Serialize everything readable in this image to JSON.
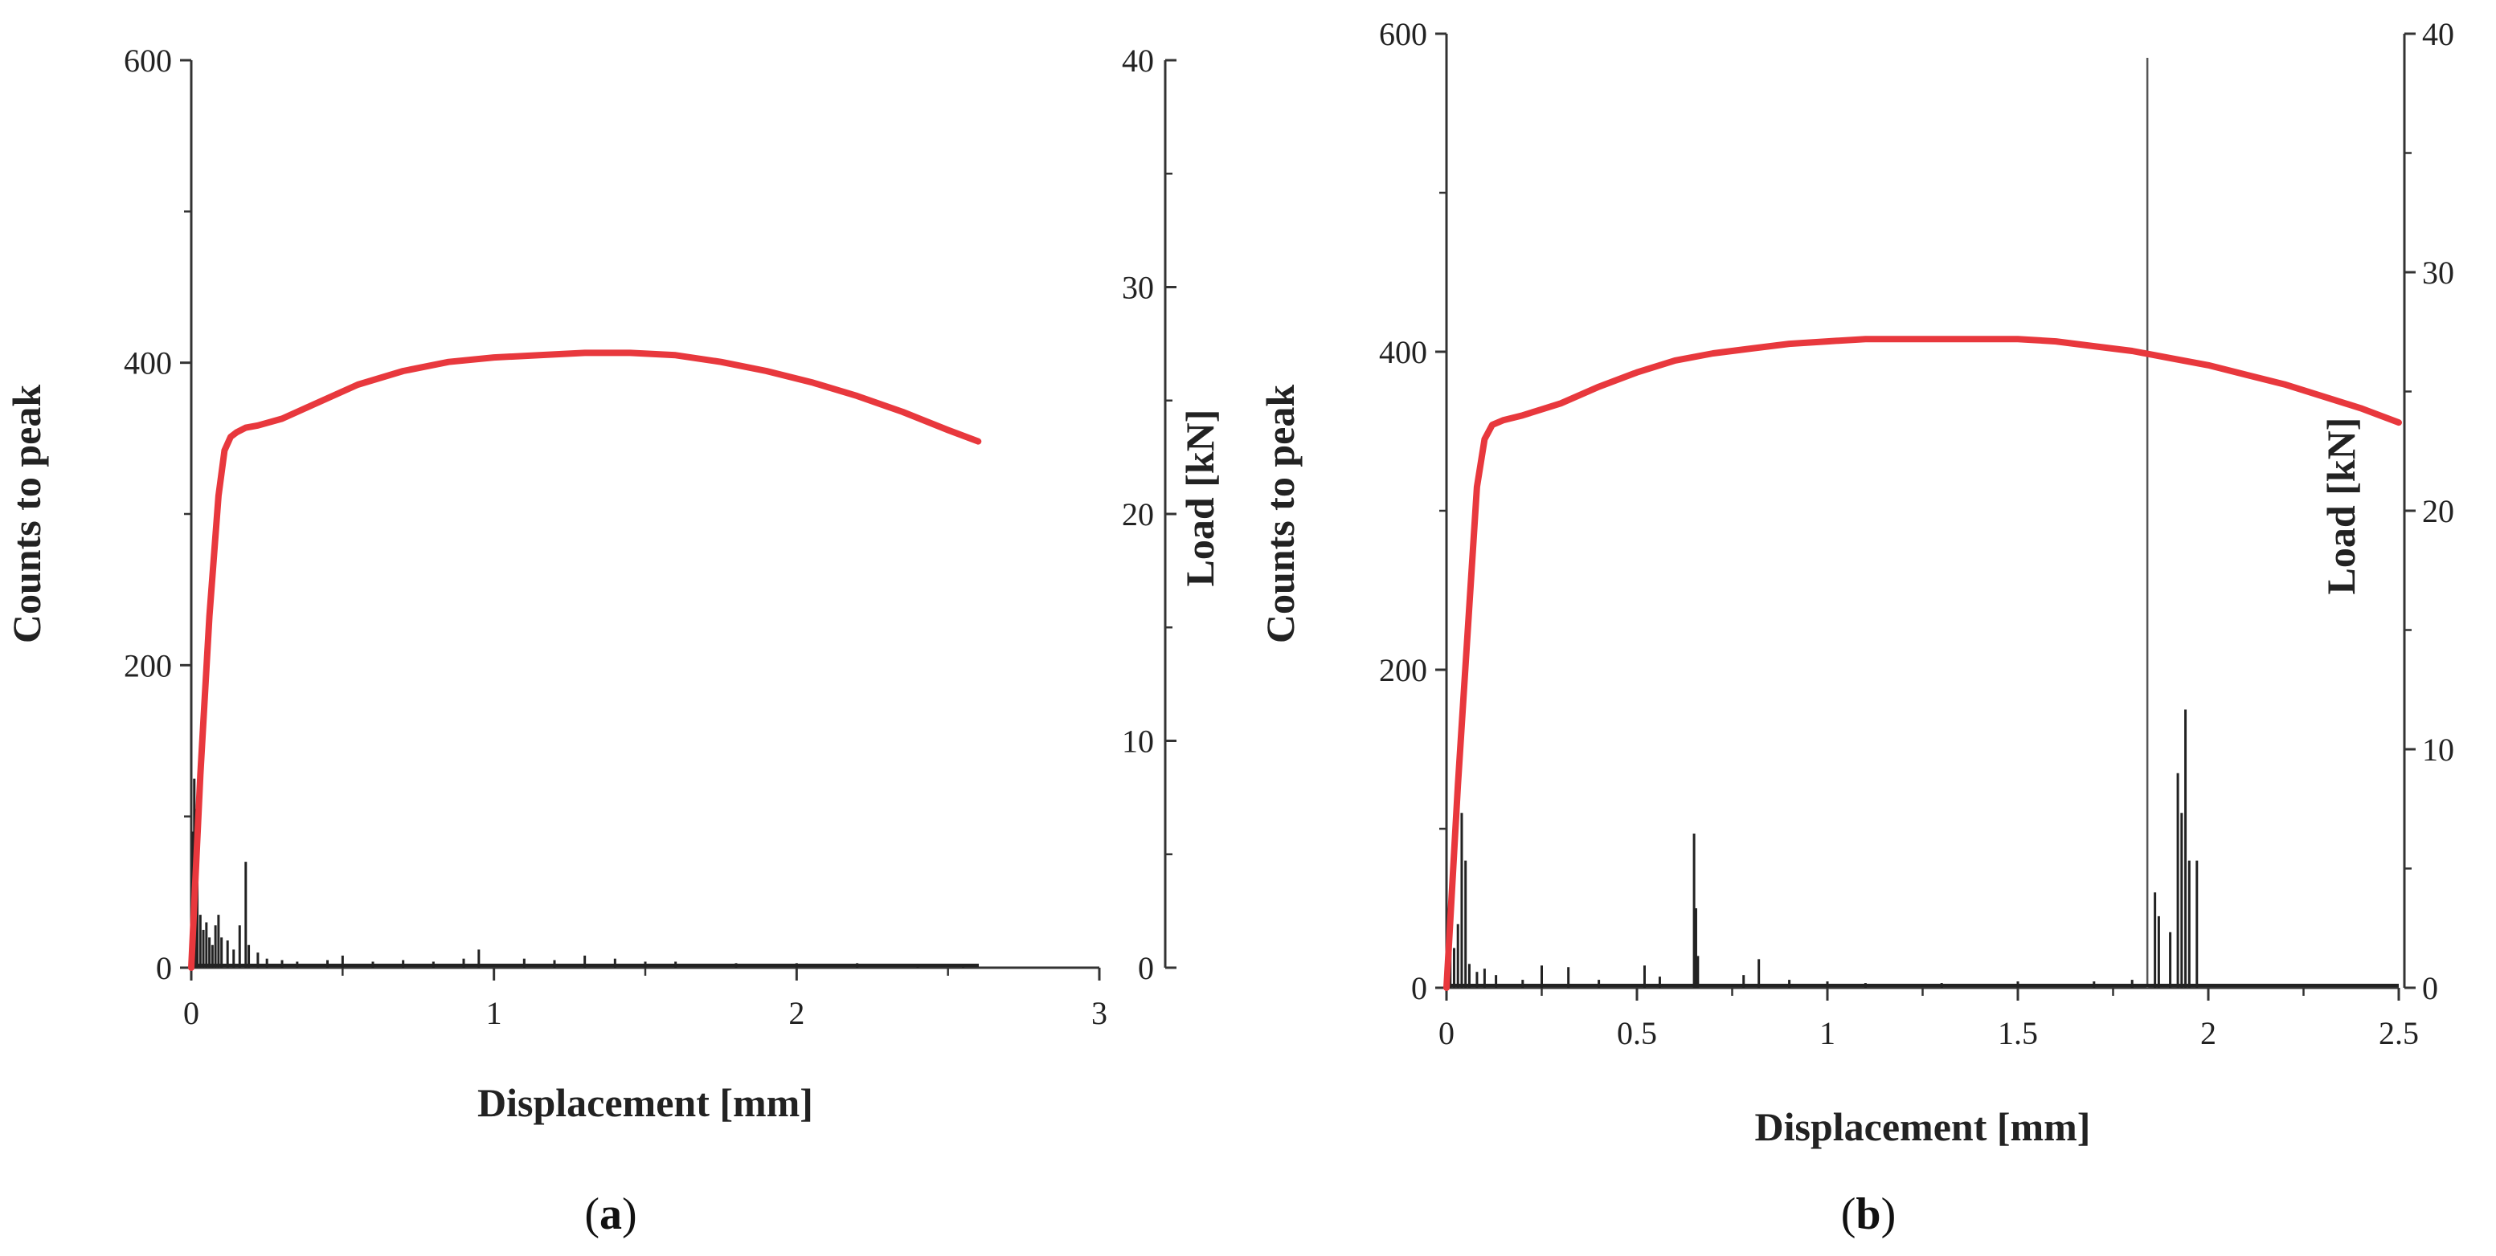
{
  "colors": {
    "load": "#e8383d",
    "counts": "#222222",
    "axis": "#333333"
  },
  "chart_data": [
    {
      "type": "line",
      "panel": "a",
      "caption": {
        "open": "(",
        "letter": "a",
        "close": ")"
      },
      "xlabel": "Displacement [mm]",
      "ylabel": "Counts to peak",
      "y2label": "Load [kN]",
      "xlim": [
        0,
        3
      ],
      "ylim": [
        0,
        600
      ],
      "y2lim": [
        0,
        40
      ],
      "xticks": [
        "0",
        "1",
        "2",
        "3"
      ],
      "yticks": [
        "0",
        "200",
        "400",
        "600"
      ],
      "y2ticks": [
        "0",
        "10",
        "20",
        "30",
        "40"
      ],
      "series": [
        {
          "name": "Load [kN]",
          "axis": "y2",
          "x": [
            0,
            0.03,
            0.06,
            0.09,
            0.11,
            0.13,
            0.15,
            0.18,
            0.22,
            0.3,
            0.4,
            0.55,
            0.7,
            0.85,
            1.0,
            1.15,
            1.3,
            1.45,
            1.6,
            1.75,
            1.9,
            2.05,
            2.2,
            2.35,
            2.5,
            2.6
          ],
          "y": [
            0,
            8.5,
            15.5,
            20.8,
            22.8,
            23.4,
            23.6,
            23.8,
            23.9,
            24.2,
            24.8,
            25.7,
            26.3,
            26.7,
            26.9,
            27.0,
            27.1,
            27.1,
            27.0,
            26.7,
            26.3,
            25.8,
            25.2,
            24.5,
            23.7,
            23.2
          ]
        },
        {
          "name": "Counts to peak",
          "axis": "y",
          "type": "spikes",
          "x": [
            0.005,
            0.01,
            0.015,
            0.02,
            0.03,
            0.04,
            0.05,
            0.06,
            0.07,
            0.08,
            0.09,
            0.1,
            0.12,
            0.14,
            0.16,
            0.18,
            0.19,
            0.22,
            0.25,
            0.3,
            0.35,
            0.45,
            0.5,
            0.6,
            0.7,
            0.8,
            0.9,
            0.95,
            1.1,
            1.2,
            1.3,
            1.4,
            1.5,
            1.6,
            1.8,
            2.0,
            2.2,
            2.4,
            2.55
          ],
          "y": [
            90,
            125,
            105,
            60,
            35,
            25,
            30,
            20,
            15,
            28,
            35,
            20,
            18,
            12,
            28,
            70,
            15,
            10,
            6,
            5,
            4,
            5,
            8,
            4,
            5,
            4,
            6,
            12,
            6,
            5,
            8,
            6,
            4,
            4,
            3,
            3,
            3,
            2,
            2
          ]
        }
      ]
    },
    {
      "type": "line",
      "panel": "b",
      "caption": {
        "open": "(",
        "letter": "b",
        "close": ")"
      },
      "xlabel": "Displacement [mm]",
      "ylabel": "Counts to peak",
      "y2label": "Load [kN]",
      "xlim": [
        0,
        2.5
      ],
      "ylim": [
        0,
        600
      ],
      "y2lim": [
        0,
        40
      ],
      "xticks": [
        "0",
        "0.5",
        "1",
        "1.5",
        "2",
        "2.5"
      ],
      "yticks": [
        "0",
        "200",
        "400",
        "600"
      ],
      "y2ticks": [
        "0",
        "10",
        "20",
        "30",
        "40"
      ],
      "vline_x": 1.84,
      "series": [
        {
          "name": "Load [kN]",
          "axis": "y2",
          "x": [
            0,
            0.03,
            0.06,
            0.08,
            0.1,
            0.12,
            0.15,
            0.2,
            0.3,
            0.4,
            0.5,
            0.6,
            0.7,
            0.8,
            0.9,
            1.0,
            1.1,
            1.2,
            1.3,
            1.4,
            1.5,
            1.6,
            1.7,
            1.8,
            1.9,
            2.0,
            2.1,
            2.2,
            2.3,
            2.4,
            2.5
          ],
          "y": [
            0,
            8.5,
            16.0,
            21.0,
            23.0,
            23.6,
            23.8,
            24.0,
            24.5,
            25.2,
            25.8,
            26.3,
            26.6,
            26.8,
            27.0,
            27.1,
            27.2,
            27.2,
            27.2,
            27.2,
            27.2,
            27.1,
            26.9,
            26.7,
            26.4,
            26.1,
            25.7,
            25.3,
            24.8,
            24.3,
            23.7
          ]
        },
        {
          "name": "Counts to peak",
          "axis": "y",
          "type": "spikes",
          "x": [
            0.01,
            0.02,
            0.03,
            0.04,
            0.05,
            0.06,
            0.08,
            0.1,
            0.13,
            0.2,
            0.25,
            0.32,
            0.4,
            0.52,
            0.56,
            0.65,
            0.655,
            0.66,
            0.78,
            0.82,
            0.9,
            1.0,
            1.1,
            1.3,
            1.5,
            1.7,
            1.8,
            1.86,
            1.87,
            1.9,
            1.92,
            1.93,
            1.94,
            1.95,
            1.97
          ],
          "y": [
            30,
            25,
            40,
            110,
            80,
            15,
            10,
            12,
            8,
            5,
            14,
            13,
            5,
            14,
            7,
            97,
            50,
            20,
            8,
            18,
            5,
            4,
            3,
            3,
            4,
            4,
            5,
            60,
            45,
            35,
            135,
            110,
            175,
            80,
            80
          ]
        }
      ]
    }
  ]
}
